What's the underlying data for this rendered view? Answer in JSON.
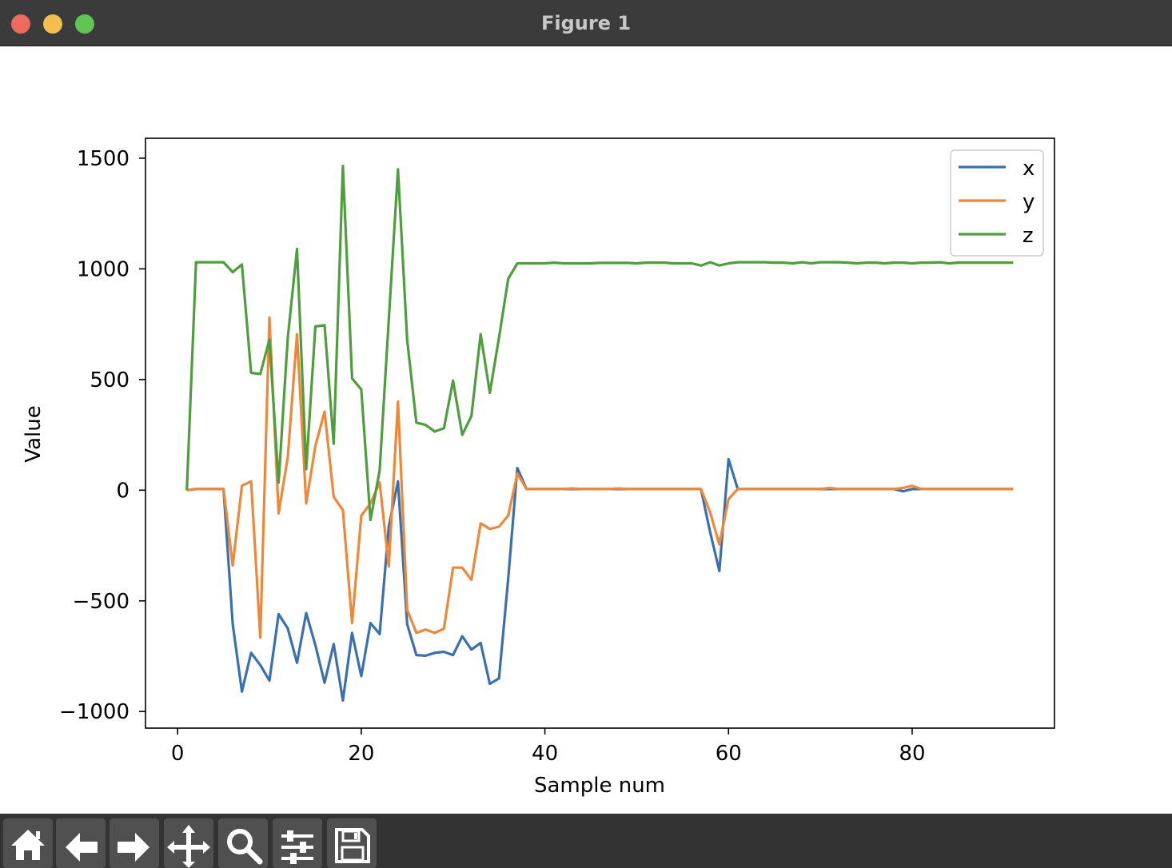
{
  "window": {
    "title": "Figure 1"
  },
  "toolbar": {
    "buttons": [
      {
        "name": "home-icon"
      },
      {
        "name": "back-arrow-icon"
      },
      {
        "name": "forward-arrow-icon"
      },
      {
        "name": "pan-move-icon"
      },
      {
        "name": "zoom-magnifier-icon"
      },
      {
        "name": "configure-subplots-icon"
      },
      {
        "name": "save-floppy-icon"
      }
    ]
  },
  "colors": {
    "x": "#3a70b0",
    "y": "#ee8838",
    "z": "#4e9e3e"
  },
  "chart_data": {
    "type": "line",
    "xlabel": "Sample num",
    "ylabel": "Value",
    "xlim": [
      -3.5,
      95.5
    ],
    "ylim": [
      -1075,
      1590
    ],
    "xticks": [
      0,
      20,
      40,
      60,
      80
    ],
    "yticks": [
      -1000,
      -500,
      0,
      500,
      1000,
      1500
    ],
    "xtick_labels": [
      "0",
      "20",
      "40",
      "60",
      "80"
    ],
    "ytick_labels": [
      "−1000",
      "−500",
      "0",
      "500",
      "1000",
      "1500"
    ],
    "legend": {
      "position": "top-right",
      "entries": [
        "x",
        "y",
        "z"
      ]
    },
    "x": [
      1,
      2,
      3,
      4,
      5,
      6,
      7,
      8,
      9,
      10,
      11,
      12,
      13,
      14,
      15,
      16,
      17,
      18,
      19,
      20,
      21,
      22,
      23,
      24,
      25,
      26,
      27,
      28,
      29,
      30,
      31,
      32,
      33,
      34,
      35,
      36,
      37,
      38,
      39,
      40,
      41,
      42,
      43,
      44,
      45,
      46,
      47,
      48,
      49,
      50,
      51,
      52,
      53,
      54,
      55,
      56,
      57,
      58,
      59,
      60,
      61,
      62,
      63,
      64,
      65,
      66,
      67,
      68,
      69,
      70,
      71,
      72,
      73,
      74,
      75,
      76,
      77,
      78,
      79,
      80,
      81,
      82,
      83,
      84,
      85,
      86,
      87,
      88,
      89,
      90,
      91
    ],
    "series": [
      {
        "name": "x",
        "color": "#3a70b0",
        "values": [
          0,
          5,
          5,
          5,
          5,
          -605,
          -910,
          -735,
          -790,
          -860,
          -560,
          -625,
          -780,
          -555,
          -700,
          -870,
          -695,
          -950,
          -645,
          -840,
          -600,
          -650,
          -165,
          40,
          -605,
          -745,
          -748,
          -735,
          -730,
          -745,
          -660,
          -720,
          -690,
          -875,
          -850,
          -400,
          100,
          5,
          5,
          5,
          5,
          5,
          5,
          5,
          5,
          5,
          5,
          5,
          5,
          5,
          5,
          5,
          5,
          5,
          5,
          5,
          5,
          -190,
          -365,
          140,
          5,
          5,
          5,
          5,
          5,
          5,
          5,
          5,
          5,
          5,
          5,
          5,
          5,
          5,
          5,
          5,
          5,
          5,
          -5,
          5,
          5,
          5,
          5,
          5,
          5,
          5,
          5,
          5,
          5,
          5,
          5
        ]
      },
      {
        "name": "y",
        "color": "#ee8838",
        "values": [
          0,
          5,
          5,
          5,
          5,
          -340,
          20,
          40,
          -665,
          780,
          -105,
          150,
          705,
          -60,
          200,
          355,
          -30,
          -90,
          -600,
          -115,
          -60,
          35,
          -345,
          400,
          -540,
          -645,
          -630,
          -645,
          -625,
          -350,
          -350,
          -405,
          -150,
          -175,
          -165,
          -115,
          75,
          5,
          5,
          5,
          5,
          5,
          8,
          5,
          5,
          5,
          5,
          8,
          5,
          5,
          5,
          5,
          5,
          5,
          5,
          5,
          5,
          -100,
          -245,
          -40,
          5,
          5,
          5,
          5,
          5,
          5,
          5,
          5,
          5,
          5,
          10,
          5,
          5,
          5,
          5,
          5,
          5,
          5,
          10,
          20,
          5,
          5,
          5,
          5,
          5,
          5,
          5,
          5,
          5,
          5,
          5
        ]
      },
      {
        "name": "z",
        "color": "#4e9e3e",
        "values": [
          0,
          1030,
          1030,
          1030,
          1030,
          985,
          1020,
          530,
          525,
          680,
          35,
          690,
          1090,
          95,
          740,
          745,
          210,
          1465,
          505,
          455,
          -135,
          90,
          770,
          1450,
          680,
          305,
          295,
          265,
          280,
          495,
          250,
          335,
          705,
          440,
          690,
          955,
          1025,
          1025,
          1025,
          1025,
          1028,
          1025,
          1025,
          1025,
          1025,
          1027,
          1027,
          1027,
          1027,
          1025,
          1028,
          1028,
          1028,
          1025,
          1025,
          1025,
          1015,
          1030,
          1015,
          1025,
          1030,
          1030,
          1030,
          1030,
          1028,
          1028,
          1025,
          1030,
          1025,
          1030,
          1030,
          1030,
          1028,
          1025,
          1028,
          1028,
          1025,
          1028,
          1028,
          1025,
          1028,
          1028,
          1030,
          1025,
          1028,
          1028,
          1028,
          1028,
          1028,
          1028,
          1028
        ]
      }
    ]
  }
}
